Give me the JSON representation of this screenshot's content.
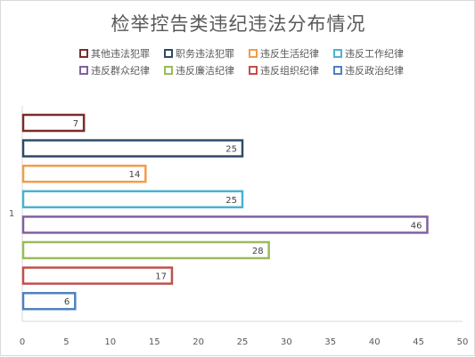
{
  "chart_data": {
    "type": "bar",
    "orientation": "horizontal",
    "title": "检举控告类违纪违法分布情况",
    "categories": [
      "1"
    ],
    "series": [
      {
        "name": "其他违法犯罪",
        "values": [
          7
        ],
        "color": "#7b2c2c"
      },
      {
        "name": "职务违法犯罪",
        "values": [
          25
        ],
        "color": "#2e4a67"
      },
      {
        "name": "违反生活纪律",
        "values": [
          14
        ],
        "color": "#f39c4a"
      },
      {
        "name": "违反工作纪律",
        "values": [
          25
        ],
        "color": "#4bb3cf"
      },
      {
        "name": "违反群众纪律",
        "values": [
          46
        ],
        "color": "#8061a2"
      },
      {
        "name": "违反廉洁纪律",
        "values": [
          28
        ],
        "color": "#9bbb59"
      },
      {
        "name": "违反组织纪律",
        "values": [
          17
        ],
        "color": "#c0504d"
      },
      {
        "name": "违反政治纪律",
        "values": [
          6
        ],
        "color": "#4f81bd"
      }
    ],
    "xlim": [
      0,
      50
    ],
    "xticks": [
      "0",
      "5",
      "10",
      "15",
      "20",
      "25",
      "30",
      "35",
      "40",
      "45",
      "50"
    ],
    "legend_position": "top",
    "grid": false
  }
}
